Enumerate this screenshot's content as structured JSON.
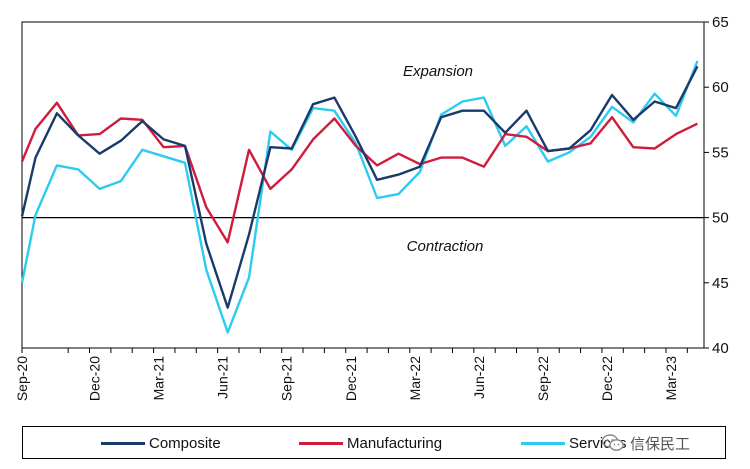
{
  "chart_data": {
    "type": "line",
    "categories": [
      "Sep-20",
      "Oct-20",
      "Nov-20",
      "Dec-20",
      "Jan-21",
      "Feb-21",
      "Mar-21",
      "Apr-21",
      "May-21",
      "Jun-21",
      "Jul-21",
      "Aug-21",
      "Sep-21",
      "Oct-21",
      "Nov-21",
      "Dec-21",
      "Jan-22",
      "Feb-22",
      "Mar-22",
      "Apr-22",
      "May-22",
      "Jun-22",
      "Jul-22",
      "Aug-22",
      "Sep-22",
      "Oct-22",
      "Nov-22",
      "Dec-22",
      "Jan-23",
      "Feb-23",
      "Mar-23",
      "Apr-23"
    ],
    "tick_labels": [
      "Sep-20",
      "Dec-20",
      "Mar-21",
      "Jun-21",
      "Sep-21",
      "Dec-21",
      "Mar-22",
      "Jun-22",
      "Sep-22",
      "Dec-22",
      "Mar-23"
    ],
    "series": [
      {
        "name": "Composite",
        "color": "#1a3a6b",
        "values": [
          54.6,
          58.0,
          56.3,
          54.9,
          55.9,
          57.4,
          56.0,
          55.5,
          48.0,
          43.1,
          48.7,
          55.4,
          55.3,
          58.7,
          59.2,
          56.2,
          52.9,
          53.3,
          53.9,
          57.7,
          58.2,
          58.2,
          56.5,
          58.2,
          55.1,
          55.3,
          56.7,
          59.4,
          57.5,
          58.9,
          58.4,
          61.6
        ]
      },
      {
        "name": "Manufacturing",
        "color": "#d01c3c",
        "values": [
          56.8,
          58.8,
          56.3,
          56.4,
          57.6,
          57.5,
          55.4,
          55.5,
          50.8,
          48.1,
          55.2,
          52.2,
          53.7,
          56.0,
          57.6,
          55.5,
          54.0,
          54.9,
          54.1,
          54.6,
          54.6,
          53.9,
          56.4,
          56.2,
          55.1,
          55.3,
          55.7,
          57.7,
          55.4,
          55.3,
          56.4,
          57.2
        ]
      },
      {
        "name": "Services",
        "color": "#2ccbef",
        "values": [
          50.2,
          54.0,
          53.7,
          52.2,
          52.8,
          55.2,
          54.7,
          54.2,
          46.0,
          41.2,
          45.4,
          56.6,
          55.2,
          58.4,
          58.2,
          55.7,
          51.5,
          51.8,
          53.5,
          57.9,
          58.9,
          59.2,
          55.5,
          57.0,
          54.3,
          55.0,
          56.2,
          58.5,
          57.3,
          59.5,
          57.8,
          62.0
        ]
      }
    ],
    "y_start": {
      "Composite": 50.1,
      "Manufacturing": 54.3,
      "Services": 45.0
    },
    "ylim": [
      40,
      65
    ],
    "yticks": [
      40,
      45,
      50,
      55,
      60,
      65
    ],
    "y_axis_side": "right",
    "reference_line": 50,
    "annotations": [
      "Expansion",
      "Contraction"
    ],
    "legend_position": "bottom",
    "grid": false
  },
  "legend": {
    "composite_label": "Composite",
    "manufacturing_label": "Manufacturing",
    "services_label": "Services"
  },
  "watermark": {
    "text": "信保民工"
  }
}
